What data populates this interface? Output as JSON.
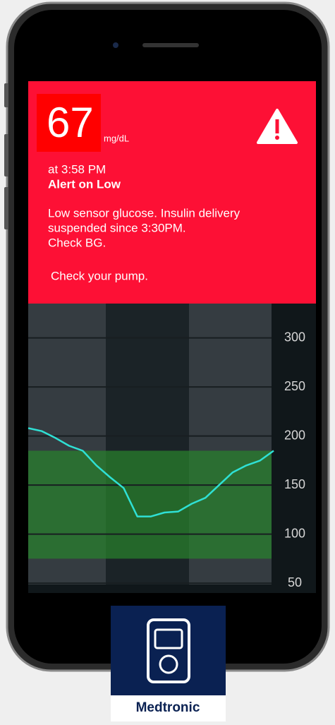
{
  "alert": {
    "glucose": "67",
    "unit": "mg/dL",
    "time": "at 3:58 PM",
    "title": "Alert on Low",
    "message": [
      "Low sensor glucose. Insulin delivery",
      "suspended since 3:30PM.",
      "Check BG."
    ],
    "action": "Check your pump."
  },
  "chart_data": {
    "type": "line",
    "series": [
      {
        "color": "#2fe0d4",
        "values": [
          208,
          205,
          198,
          190,
          185,
          170,
          158,
          147,
          118,
          118,
          122,
          123,
          131,
          137,
          150,
          163,
          170,
          175,
          185
        ]
      }
    ],
    "target_range": [
      75,
      185
    ],
    "ylim": [
      40,
      335
    ],
    "yticks": [
      300,
      250,
      200,
      150,
      100,
      50
    ],
    "grid": true
  },
  "brand": {
    "name": "Medtronic"
  }
}
